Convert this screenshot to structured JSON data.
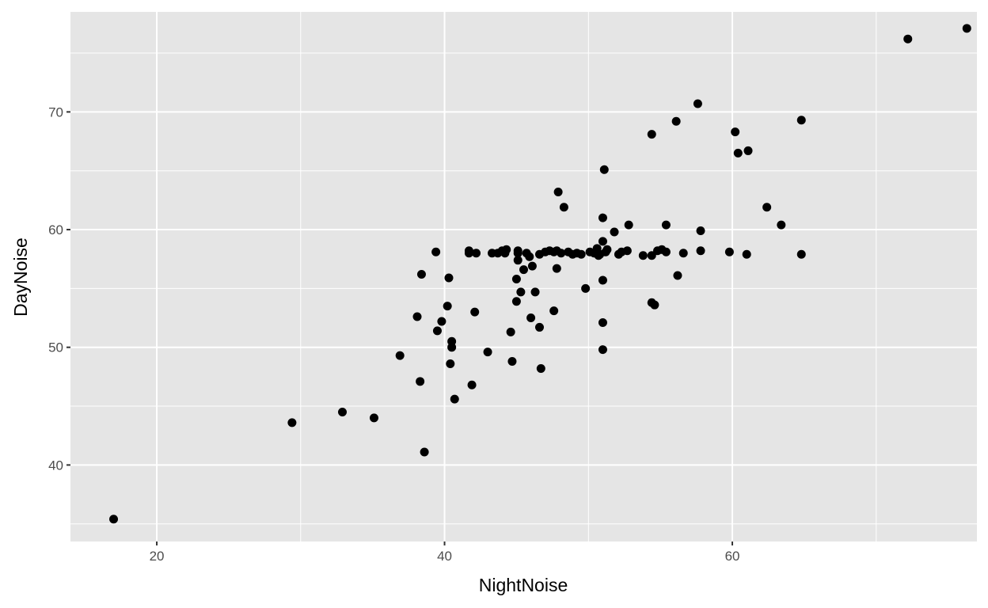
{
  "chart_data": {
    "type": "scatter",
    "title": "",
    "xlabel": "NightNoise",
    "ylabel": "DayNoise",
    "xlim": [
      14,
      77
    ],
    "ylim": [
      33.5,
      78.5
    ],
    "x_ticks": [
      20,
      40,
      60
    ],
    "y_ticks": [
      40,
      50,
      60,
      70
    ],
    "x_tick_labels": [
      "20",
      "40",
      "60"
    ],
    "y_tick_labels": [
      "40",
      "50",
      "60",
      "70"
    ],
    "grid": true,
    "legend": "none",
    "colors": {
      "panel": "#e5e5e5",
      "grid": "#ffffff",
      "point": "#000000"
    },
    "points": [
      [
        17.0,
        35.4
      ],
      [
        29.4,
        43.6
      ],
      [
        32.9,
        44.5
      ],
      [
        35.1,
        44.0
      ],
      [
        36.9,
        49.3
      ],
      [
        38.1,
        52.6
      ],
      [
        38.3,
        47.1
      ],
      [
        38.4,
        56.2
      ],
      [
        38.6,
        41.1
      ],
      [
        39.4,
        58.1
      ],
      [
        39.5,
        51.4
      ],
      [
        39.8,
        52.2
      ],
      [
        40.2,
        53.5
      ],
      [
        40.3,
        55.9
      ],
      [
        40.4,
        48.6
      ],
      [
        40.5,
        50.5
      ],
      [
        40.5,
        50.0
      ],
      [
        40.7,
        45.6
      ],
      [
        41.7,
        58.2
      ],
      [
        41.7,
        58.0
      ],
      [
        41.9,
        46.8
      ],
      [
        42.1,
        53.0
      ],
      [
        42.2,
        58.0
      ],
      [
        43.0,
        49.6
      ],
      [
        43.3,
        58.0
      ],
      [
        43.7,
        58.0
      ],
      [
        44.0,
        58.2
      ],
      [
        44.2,
        58.0
      ],
      [
        44.3,
        58.3
      ],
      [
        44.6,
        51.3
      ],
      [
        44.7,
        48.8
      ],
      [
        45.0,
        53.9
      ],
      [
        45.0,
        55.8
      ],
      [
        45.1,
        57.4
      ],
      [
        45.1,
        58.0
      ],
      [
        45.1,
        58.2
      ],
      [
        45.3,
        54.7
      ],
      [
        45.5,
        56.6
      ],
      [
        45.7,
        58.0
      ],
      [
        45.9,
        57.7
      ],
      [
        46.0,
        52.5
      ],
      [
        46.1,
        56.9
      ],
      [
        46.3,
        54.7
      ],
      [
        46.6,
        51.7
      ],
      [
        46.6,
        57.9
      ],
      [
        46.7,
        48.2
      ],
      [
        47.0,
        58.1
      ],
      [
        47.3,
        58.2
      ],
      [
        47.6,
        58.1
      ],
      [
        47.6,
        53.1
      ],
      [
        47.8,
        56.7
      ],
      [
        47.8,
        58.2
      ],
      [
        47.9,
        63.2
      ],
      [
        48.1,
        58.0
      ],
      [
        48.3,
        61.9
      ],
      [
        48.6,
        58.1
      ],
      [
        48.9,
        57.9
      ],
      [
        49.2,
        58.0
      ],
      [
        49.5,
        57.9
      ],
      [
        49.8,
        55.0
      ],
      [
        50.1,
        58.1
      ],
      [
        50.4,
        58.0
      ],
      [
        50.6,
        58.4
      ],
      [
        50.7,
        57.8
      ],
      [
        50.8,
        57.9
      ],
      [
        51.0,
        61.0
      ],
      [
        51.0,
        59.0
      ],
      [
        51.0,
        55.7
      ],
      [
        51.0,
        52.1
      ],
      [
        51.0,
        49.8
      ],
      [
        51.1,
        65.1
      ],
      [
        51.2,
        58.1
      ],
      [
        51.3,
        58.3
      ],
      [
        51.8,
        59.8
      ],
      [
        52.1,
        57.9
      ],
      [
        52.3,
        58.1
      ],
      [
        52.7,
        58.2
      ],
      [
        52.8,
        60.4
      ],
      [
        53.8,
        57.8
      ],
      [
        54.4,
        68.1
      ],
      [
        54.4,
        57.8
      ],
      [
        54.4,
        53.8
      ],
      [
        54.6,
        53.6
      ],
      [
        54.8,
        58.2
      ],
      [
        55.1,
        58.3
      ],
      [
        55.4,
        60.4
      ],
      [
        55.4,
        58.1
      ],
      [
        56.1,
        69.2
      ],
      [
        56.2,
        56.1
      ],
      [
        56.6,
        58.0
      ],
      [
        57.6,
        70.7
      ],
      [
        57.8,
        58.2
      ],
      [
        57.8,
        59.9
      ],
      [
        59.8,
        58.1
      ],
      [
        60.2,
        68.3
      ],
      [
        60.4,
        66.5
      ],
      [
        61.0,
        57.9
      ],
      [
        61.1,
        66.7
      ],
      [
        62.4,
        61.9
      ],
      [
        63.4,
        60.4
      ],
      [
        64.8,
        69.3
      ],
      [
        64.8,
        57.9
      ],
      [
        72.2,
        76.2
      ],
      [
        76.3,
        77.1
      ]
    ]
  }
}
